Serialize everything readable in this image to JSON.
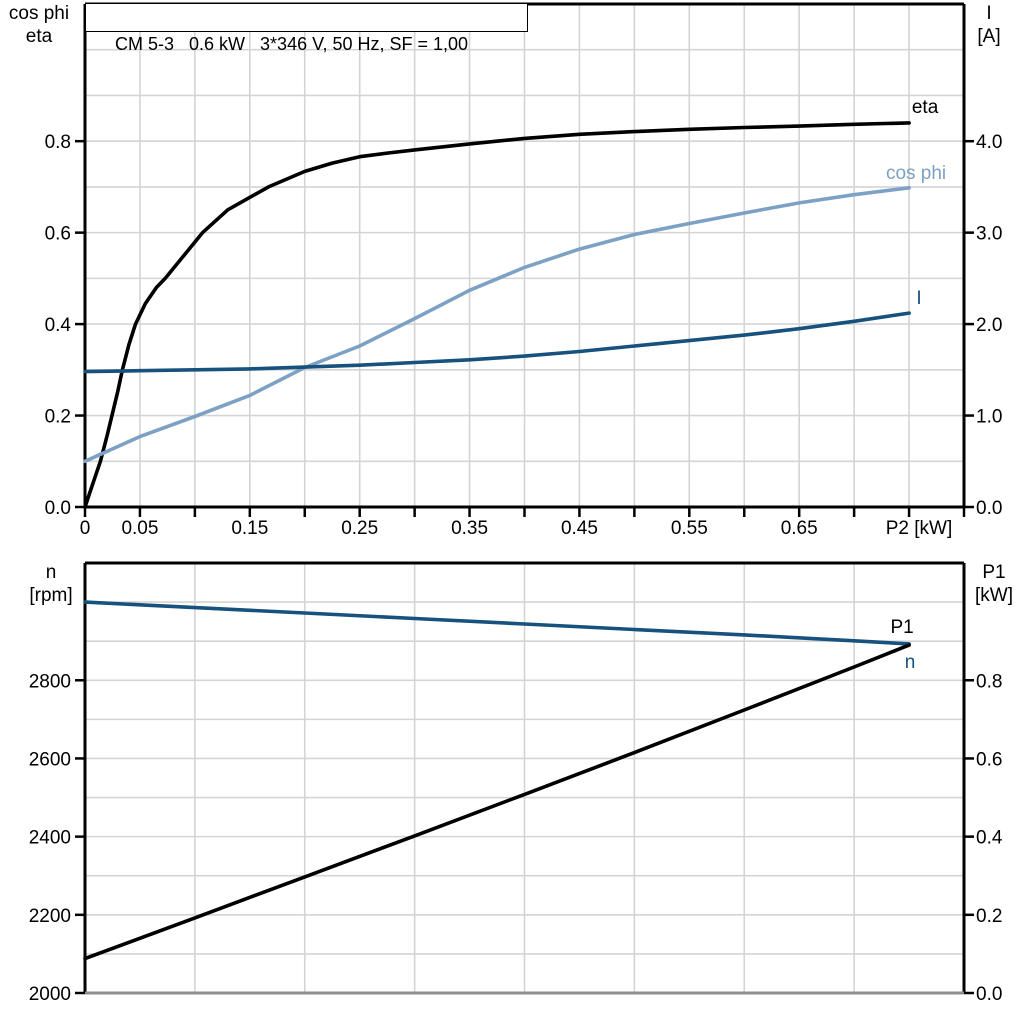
{
  "colors": {
    "background": "#ffffff",
    "frame": "#000000",
    "bottom_baseline": "#8E8E8E",
    "gridline": "#D4D4D4",
    "eta": "#000000",
    "cos_phi": "#7DA1C4",
    "current": "#17517E",
    "speed": "#17517E",
    "p1": "#000000"
  },
  "top_chart": {
    "title": "CM 5-3   0.6 kW   3*346 V, 50 Hz, SF = 1,00",
    "left_axis_title": [
      "cos phi",
      "eta"
    ],
    "right_axis_title": [
      "I",
      "[A]"
    ],
    "x_axis_label": "P2 [kW]"
  },
  "bottom_chart": {
    "left_axis_title": [
      "n",
      "[rpm]"
    ],
    "right_axis_title": [
      "P1",
      "[kW]"
    ]
  },
  "chart_data": [
    {
      "type": "line",
      "title": "CM 5-3   0.6 kW   3*346 V, 50 Hz, SF = 1,00",
      "xlabel": "P2 [kW]",
      "ylabel_left": "cos phi / eta",
      "ylabel_right": "I [A]",
      "xlim": [
        0,
        0.8
      ],
      "ylim_left": [
        0,
        1.1
      ],
      "ylim_right": [
        0,
        5.5
      ],
      "grid": {
        "x_step": 0.05,
        "y_step_left": 0.1
      },
      "x_ticks": {
        "step": 0.05,
        "label_values": [
          0,
          0.05,
          0.15,
          0.25,
          0.35,
          0.45,
          0.55,
          0.65
        ],
        "labels": [
          "0",
          "0.05",
          "0.15",
          "0.25",
          "0.35",
          "0.45",
          "0.55",
          "0.65"
        ]
      },
      "y_ticks_left": {
        "values": [
          0,
          0.2,
          0.4,
          0.6,
          0.8
        ],
        "labels": [
          "0.0",
          "0.2",
          "0.4",
          "0.6",
          "0.8"
        ]
      },
      "y_ticks_right": {
        "values": [
          0,
          1,
          2,
          3,
          4
        ],
        "labels": [
          "0.0",
          "1.0",
          "2.0",
          "3.0",
          "4.0"
        ]
      },
      "series": [
        {
          "name": "eta",
          "label": "eta",
          "axis": "left",
          "color": "#000000",
          "points": [
            [
              0,
              0
            ],
            [
              0.007,
              0.05
            ],
            [
              0.014,
              0.1
            ],
            [
              0.02,
              0.155
            ],
            [
              0.025,
              0.205
            ],
            [
              0.03,
              0.255
            ],
            [
              0.034,
              0.3
            ],
            [
              0.04,
              0.355
            ],
            [
              0.046,
              0.4
            ],
            [
              0.055,
              0.445
            ],
            [
              0.065,
              0.48
            ],
            [
              0.073,
              0.5
            ],
            [
              0.09,
              0.55
            ],
            [
              0.107,
              0.6
            ],
            [
              0.13,
              0.65
            ],
            [
              0.167,
              0.7
            ],
            [
              0.2,
              0.734
            ],
            [
              0.225,
              0.752
            ],
            [
              0.25,
              0.766
            ],
            [
              0.275,
              0.774
            ],
            [
              0.3,
              0.781
            ],
            [
              0.35,
              0.794
            ],
            [
              0.4,
              0.806
            ],
            [
              0.45,
              0.815
            ],
            [
              0.5,
              0.821
            ],
            [
              0.55,
              0.826
            ],
            [
              0.6,
              0.83
            ],
            [
              0.65,
              0.833
            ],
            [
              0.7,
              0.837
            ],
            [
              0.75,
              0.84
            ]
          ]
        },
        {
          "name": "cos phi",
          "label": "cos phi",
          "axis": "left",
          "color": "#7DA1C4",
          "points": [
            [
              0,
              0.1
            ],
            [
              0.05,
              0.154
            ],
            [
              0.1,
              0.198
            ],
            [
              0.15,
              0.244
            ],
            [
              0.2,
              0.305
            ],
            [
              0.25,
              0.352
            ],
            [
              0.3,
              0.412
            ],
            [
              0.35,
              0.474
            ],
            [
              0.4,
              0.524
            ],
            [
              0.45,
              0.564
            ],
            [
              0.5,
              0.596
            ],
            [
              0.55,
              0.62
            ],
            [
              0.6,
              0.643
            ],
            [
              0.65,
              0.665
            ],
            [
              0.7,
              0.683
            ],
            [
              0.75,
              0.698
            ]
          ]
        },
        {
          "name": "I",
          "label": "I",
          "axis": "right",
          "color": "#17517E",
          "points": [
            [
              0,
              1.48
            ],
            [
              0.05,
              1.49
            ],
            [
              0.1,
              1.5
            ],
            [
              0.15,
              1.51
            ],
            [
              0.2,
              1.53
            ],
            [
              0.25,
              1.55
            ],
            [
              0.3,
              1.58
            ],
            [
              0.35,
              1.61
            ],
            [
              0.4,
              1.65
            ],
            [
              0.45,
              1.7
            ],
            [
              0.5,
              1.76
            ],
            [
              0.55,
              1.82
            ],
            [
              0.6,
              1.88
            ],
            [
              0.65,
              1.95
            ],
            [
              0.7,
              2.03
            ],
            [
              0.75,
              2.12
            ]
          ]
        }
      ]
    },
    {
      "type": "line",
      "title": "",
      "xlabel": "",
      "ylabel_left": "n [rpm]",
      "ylabel_right": "P1 [kW]",
      "xlim": [
        0,
        0.8
      ],
      "ylim_left": [
        2000,
        3100
      ],
      "ylim_right": [
        0,
        1.1
      ],
      "grid": {
        "x_step": 0.1,
        "y_step_left": 100
      },
      "x_ticks": {
        "step": 0,
        "label_values": [],
        "labels": []
      },
      "y_ticks_left": {
        "values": [
          2000,
          2200,
          2400,
          2600,
          2800
        ],
        "labels": [
          "2000",
          "2200",
          "2400",
          "2600",
          "2800"
        ]
      },
      "y_ticks_right": {
        "values": [
          0,
          0.2,
          0.4,
          0.6,
          0.8
        ],
        "labels": [
          "0.0",
          "0.2",
          "0.4",
          "0.6",
          "0.8"
        ]
      },
      "series": [
        {
          "name": "n",
          "label": "n",
          "axis": "left",
          "color": "#17517E",
          "points": [
            [
              0,
              3000
            ],
            [
              0.1,
              2986
            ],
            [
              0.2,
              2972
            ],
            [
              0.3,
              2958
            ],
            [
              0.4,
              2944
            ],
            [
              0.5,
              2930
            ],
            [
              0.6,
              2916
            ],
            [
              0.7,
              2901
            ],
            [
              0.75,
              2893
            ]
          ]
        },
        {
          "name": "P1",
          "label": "P1",
          "axis": "right",
          "color": "#000000",
          "points": [
            [
              0,
              0.088
            ],
            [
              0.1,
              0.192
            ],
            [
              0.2,
              0.297
            ],
            [
              0.3,
              0.402
            ],
            [
              0.4,
              0.508
            ],
            [
              0.5,
              0.615
            ],
            [
              0.6,
              0.724
            ],
            [
              0.7,
              0.834
            ],
            [
              0.75,
              0.89
            ]
          ]
        }
      ]
    }
  ]
}
